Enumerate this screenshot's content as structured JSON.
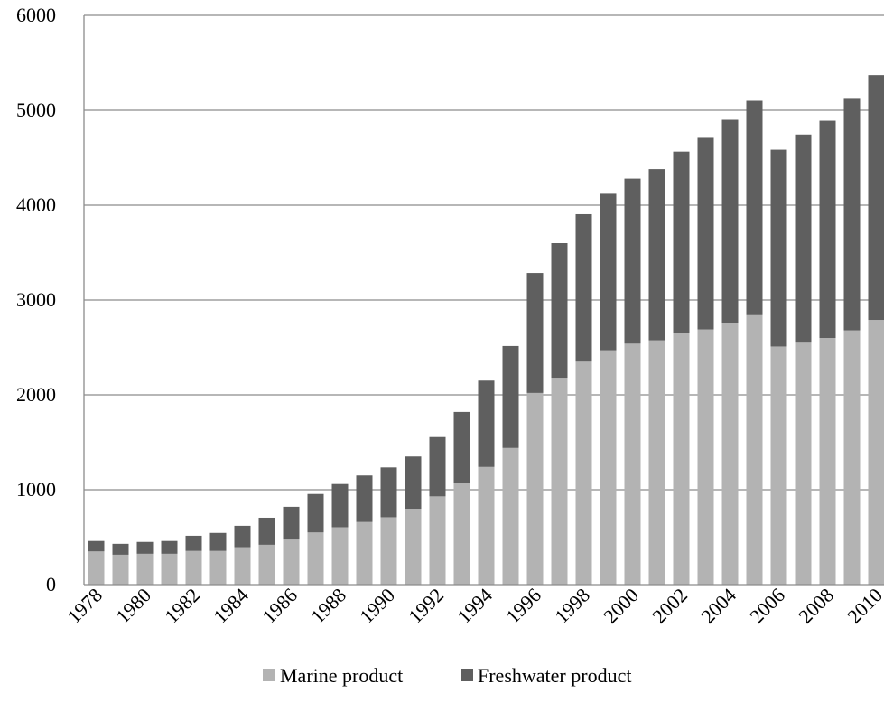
{
  "chart_data": {
    "type": "bar",
    "stacked": true,
    "title": "",
    "xlabel": "",
    "ylabel": "",
    "ylim": [
      0,
      6000
    ],
    "yticks": [
      0,
      1000,
      2000,
      3000,
      4000,
      5000,
      6000
    ],
    "grid": "horizontal",
    "legend_position": "bottom",
    "categories": [
      "1978",
      "1979",
      "1980",
      "1981",
      "1982",
      "1983",
      "1984",
      "1985",
      "1986",
      "1987",
      "1988",
      "1989",
      "1990",
      "1991",
      "1992",
      "1993",
      "1994",
      "1995",
      "1996",
      "1997",
      "1998",
      "1999",
      "2000",
      "2001",
      "2002",
      "2003",
      "2004",
      "2005",
      "2006",
      "2007",
      "2008",
      "2009",
      "2010"
    ],
    "xtick_labels": [
      "1978",
      "",
      "1980",
      "",
      "1982",
      "",
      "1984",
      "",
      "1986",
      "",
      "1988",
      "",
      "1990",
      "",
      "1992",
      "",
      "1994",
      "",
      "1996",
      "",
      "1998",
      "",
      "2000",
      "",
      "2002",
      "",
      "2004",
      "",
      "2006",
      "",
      "2008",
      "",
      "2010"
    ],
    "series": [
      {
        "name": "Marine product",
        "color": "#b3b3b3",
        "values": [
          350,
          315,
          325,
          325,
          355,
          355,
          395,
          420,
          475,
          550,
          605,
          660,
          710,
          800,
          930,
          1075,
          1240,
          1440,
          2020,
          2180,
          2350,
          2470,
          2540,
          2575,
          2650,
          2690,
          2760,
          2840,
          2510,
          2550,
          2600,
          2680,
          2790
        ]
      },
      {
        "name": "Freshwater product",
        "color": "#5f5f5f",
        "values": [
          110,
          115,
          125,
          135,
          160,
          190,
          225,
          285,
          345,
          405,
          455,
          490,
          525,
          550,
          625,
          745,
          910,
          1075,
          1265,
          1420,
          1555,
          1650,
          1740,
          1805,
          1915,
          2020,
          2140,
          2260,
          2075,
          2195,
          2290,
          2440,
          2580
        ]
      }
    ]
  }
}
